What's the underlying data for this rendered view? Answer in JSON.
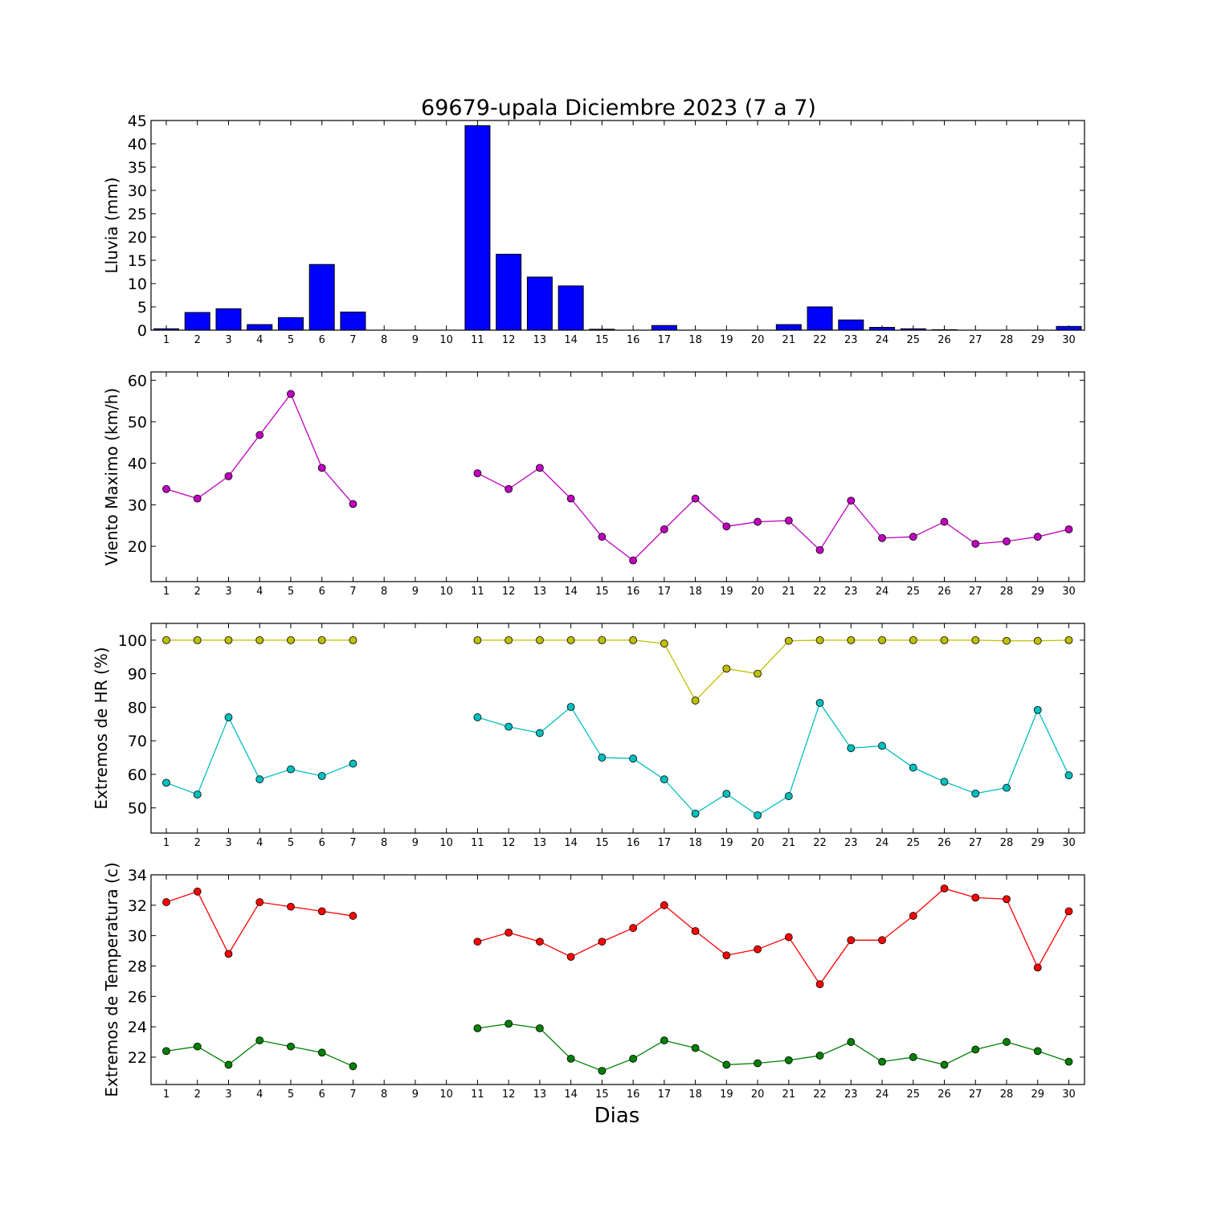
{
  "title": "69679-upala Diciembre 2023  (7 a 7)",
  "xlabel": "Dias",
  "days": [
    1,
    2,
    3,
    4,
    5,
    6,
    7,
    8,
    9,
    10,
    11,
    12,
    13,
    14,
    15,
    16,
    17,
    18,
    19,
    20,
    21,
    22,
    23,
    24,
    25,
    26,
    27,
    28,
    29,
    30
  ],
  "colors": {
    "rain": "#0000ff",
    "wind": "#bf00bf",
    "hr_max": "#bfbf00",
    "hr_min": "#00bfbf",
    "temp_max": "#ff0000",
    "temp_min": "#008000"
  },
  "chart_data": [
    {
      "type": "bar",
      "ylabel": "Lluvia (mm)",
      "ylim": [
        0,
        45
      ],
      "yticks": [
        0,
        5,
        10,
        15,
        20,
        25,
        30,
        35,
        40,
        45
      ],
      "x": [
        1,
        2,
        3,
        4,
        5,
        6,
        7,
        8,
        9,
        10,
        11,
        12,
        13,
        14,
        15,
        16,
        17,
        18,
        19,
        20,
        21,
        22,
        23,
        24,
        25,
        26,
        27,
        28,
        29,
        30
      ],
      "values": [
        0.3,
        3.8,
        4.6,
        1.2,
        2.7,
        14.1,
        3.9,
        0,
        0,
        0,
        43.9,
        16.3,
        11.4,
        9.5,
        0.2,
        0,
        1.0,
        0,
        0,
        0,
        1.2,
        5.0,
        2.2,
        0.6,
        0.3,
        0.1,
        0,
        0,
        0,
        0.8
      ]
    },
    {
      "type": "line",
      "ylabel": "Viento Maximo (km/h)",
      "ylim": [
        11.5,
        62
      ],
      "yticks": [
        20,
        30,
        40,
        50,
        60
      ],
      "x": [
        1,
        2,
        3,
        4,
        5,
        6,
        7,
        8,
        9,
        10,
        11,
        12,
        13,
        14,
        15,
        16,
        17,
        18,
        19,
        20,
        21,
        22,
        23,
        24,
        25,
        26,
        27,
        28,
        29,
        30
      ],
      "series": [
        {
          "values": [
            33.8,
            31.5,
            36.9,
            46.8,
            56.7,
            38.9,
            30.2,
            null,
            null,
            null,
            37.6,
            33.8,
            38.9,
            31.5,
            22.3,
            16.6,
            24.1,
            31.5,
            24.8,
            25.9,
            26.2,
            19.1,
            31.0,
            22.0,
            22.3,
            25.9,
            20.6,
            21.2,
            22.3,
            24.1
          ]
        }
      ]
    },
    {
      "type": "line",
      "ylabel": "Extremos de HR (%)",
      "ylim": [
        42.5,
        105
      ],
      "yticks": [
        50,
        60,
        70,
        80,
        90,
        100
      ],
      "x": [
        1,
        2,
        3,
        4,
        5,
        6,
        7,
        8,
        9,
        10,
        11,
        12,
        13,
        14,
        15,
        16,
        17,
        18,
        19,
        20,
        21,
        22,
        23,
        24,
        25,
        26,
        27,
        28,
        29,
        30
      ],
      "series": [
        {
          "values": [
            100,
            100,
            100,
            100,
            100,
            100,
            100,
            null,
            null,
            null,
            100,
            100,
            100,
            100,
            100,
            100,
            99,
            82,
            91.5,
            90,
            99.8,
            100,
            100,
            100,
            100,
            100,
            100,
            99.8,
            99.8,
            100
          ]
        },
        {
          "values": [
            57.5,
            54,
            77,
            58.5,
            61.5,
            59.5,
            63.2,
            null,
            null,
            null,
            77,
            74.2,
            72.3,
            80.1,
            65,
            64.7,
            58.5,
            48.3,
            54.2,
            47.8,
            53.5,
            81.3,
            67.8,
            68.5,
            62,
            57.8,
            54.3,
            56,
            79.2,
            59.7
          ]
        }
      ]
    },
    {
      "type": "line",
      "ylabel": "Extremos de Temperatura (c)",
      "ylim": [
        20.2,
        34
      ],
      "yticks": [
        22,
        24,
        26,
        28,
        30,
        32,
        34
      ],
      "x": [
        1,
        2,
        3,
        4,
        5,
        6,
        7,
        8,
        9,
        10,
        11,
        12,
        13,
        14,
        15,
        16,
        17,
        18,
        19,
        20,
        21,
        22,
        23,
        24,
        25,
        26,
        27,
        28,
        29,
        30
      ],
      "series": [
        {
          "values": [
            32.2,
            32.9,
            28.8,
            32.2,
            31.9,
            31.6,
            31.3,
            null,
            null,
            null,
            29.6,
            30.2,
            29.6,
            28.6,
            29.6,
            30.5,
            32.0,
            30.3,
            28.7,
            29.1,
            29.9,
            26.8,
            29.7,
            29.7,
            31.3,
            33.1,
            32.5,
            32.4,
            27.9,
            31.6
          ]
        },
        {
          "values": [
            22.4,
            22.7,
            21.5,
            23.1,
            22.7,
            22.3,
            21.4,
            null,
            null,
            null,
            23.9,
            24.2,
            23.9,
            21.9,
            21.1,
            21.9,
            23.1,
            22.6,
            21.5,
            21.6,
            21.8,
            22.1,
            23.0,
            21.7,
            22.0,
            21.5,
            22.5,
            23.0,
            22.4,
            21.7
          ]
        }
      ]
    }
  ]
}
